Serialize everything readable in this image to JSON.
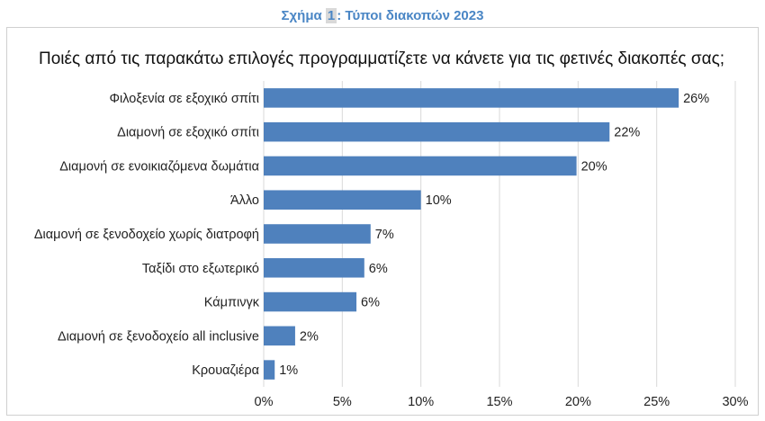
{
  "caption": {
    "prefix": "Σχήμα ",
    "number": "1",
    "suffix": ": Τύποι διακοπών 2023"
  },
  "chart_data": {
    "type": "bar",
    "orientation": "horizontal",
    "title": "Ποιές από τις παρακάτω επιλογές προγραμματίζετε να κάνετε για τις φετινές διακοπές σας;",
    "categories": [
      "Φιλοξενία σε εξοχικό σπίτι",
      "Διαμονή σε εξοχικό σπίτι",
      "Διαμονή σε ενοικιαζόμενα δωμάτια",
      "Άλλο",
      "Διαμονή σε ξενοδοχείο χωρίς διατροφή",
      "Ταξίδι στο εξωτερικό",
      "Κάμπινγκ",
      "Διαμονή σε ξενοδοχείο all inclusive",
      "Κρουαζιέρα"
    ],
    "values": [
      26.4,
      22.0,
      19.9,
      10.0,
      6.8,
      6.4,
      5.9,
      2.0,
      0.7
    ],
    "value_labels": [
      "26%",
      "22%",
      "20%",
      "10%",
      "7%",
      "6%",
      "6%",
      "2%",
      "1%"
    ],
    "x_ticks": [
      "0%",
      "5%",
      "10%",
      "15%",
      "20%",
      "25%",
      "30%"
    ],
    "xlim": [
      0,
      30
    ],
    "grid": true,
    "bar_color": "#4f81bd",
    "grid_color": "#d9d9d9"
  }
}
